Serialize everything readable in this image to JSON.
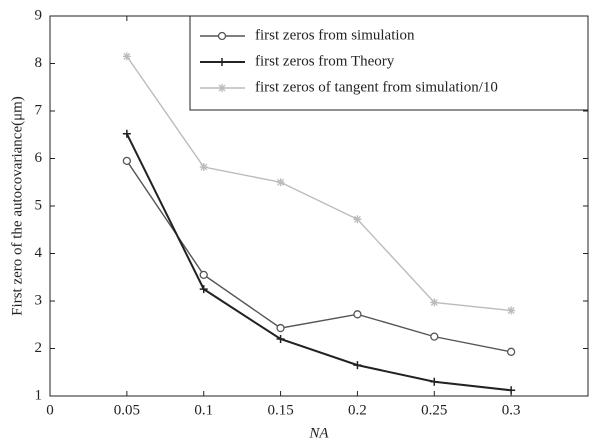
{
  "chart_data": {
    "type": "line",
    "x_label": "NA",
    "y_label": "First zero of the autocovariance(μm)",
    "x": [
      0.05,
      0.1,
      0.15,
      0.2,
      0.25,
      0.3
    ],
    "series": [
      {
        "name": "first zeros from simulation",
        "color": "#555555",
        "marker": "circle",
        "values": [
          5.95,
          3.55,
          2.43,
          2.72,
          2.25,
          1.93
        ]
      },
      {
        "name": "first zeros from Theory",
        "color": "#222222",
        "marker": "plus",
        "values": [
          6.52,
          3.25,
          2.2,
          1.65,
          1.3,
          1.12
        ]
      },
      {
        "name": "first zeros of tangent from simulation/10",
        "color": "#bbbbbb",
        "marker": "star",
        "values": [
          8.15,
          5.82,
          5.5,
          4.72,
          2.97,
          2.8
        ]
      }
    ],
    "xlim": [
      0,
      0.35
    ],
    "xticks": [
      0,
      0.05,
      0.1,
      0.15,
      0.2,
      0.25,
      0.3
    ],
    "ylim": [
      1,
      9
    ],
    "yticks": [
      1,
      2,
      3,
      4,
      5,
      6,
      7,
      8,
      9
    ],
    "legend": "upper-right"
  }
}
